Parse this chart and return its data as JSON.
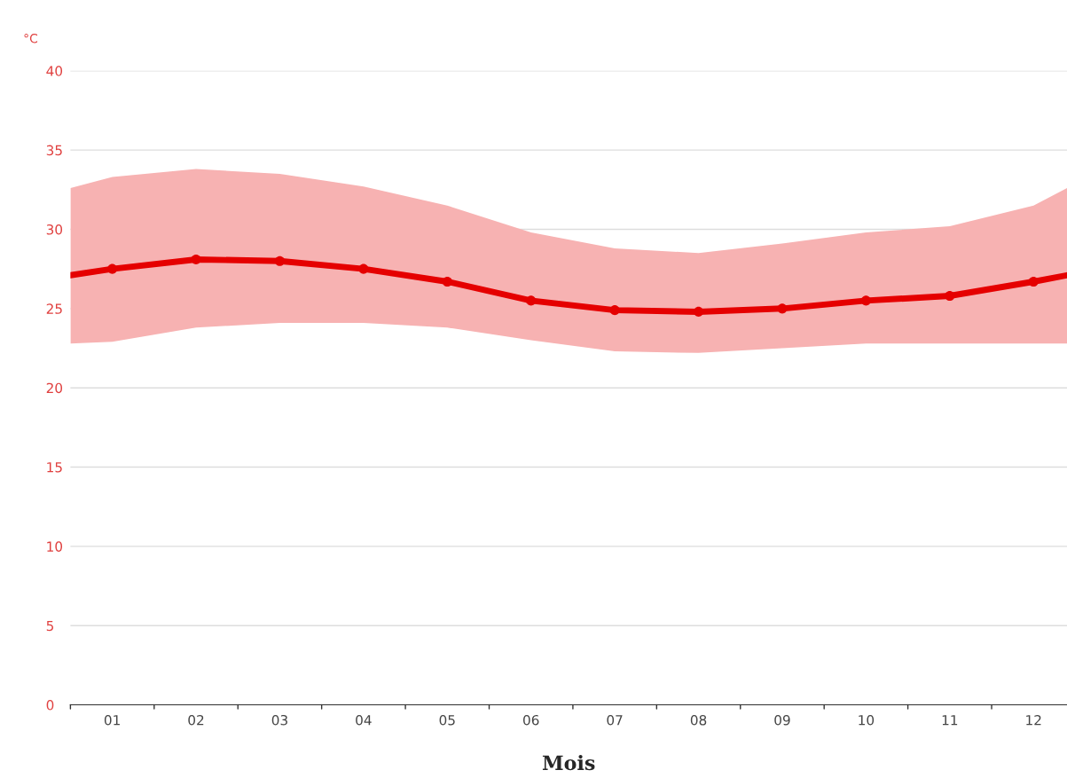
{
  "chart_data": {
    "type": "line",
    "xlabel": "Mois",
    "ylabel": "°C",
    "x": [
      0.5,
      1,
      2,
      3,
      4,
      5,
      6,
      7,
      8,
      9,
      10,
      11,
      12,
      12.4
    ],
    "series": [
      {
        "color": "#e50000",
        "values": [
          27.1,
          27.5,
          28.1,
          28.0,
          27.5,
          26.7,
          25.5,
          24.9,
          24.8,
          25.0,
          25.5,
          25.8,
          26.7,
          27.1
        ],
        "lower": [
          22.8,
          22.9,
          23.8,
          24.1,
          24.1,
          23.8,
          23.0,
          22.3,
          22.2,
          22.5,
          22.8,
          22.8,
          22.8,
          22.8
        ],
        "upper": [
          32.6,
          33.3,
          33.8,
          33.5,
          32.7,
          31.5,
          29.8,
          28.8,
          28.5,
          29.1,
          29.8,
          30.2,
          31.5,
          32.6
        ]
      }
    ],
    "xlim": [
      0.5,
      12.4
    ],
    "xticks": [
      {
        "value": 1,
        "label": "01"
      },
      {
        "value": 2,
        "label": "02"
      },
      {
        "value": 3,
        "label": "03"
      },
      {
        "value": 4,
        "label": "04"
      },
      {
        "value": 5,
        "label": "05"
      },
      {
        "value": 6,
        "label": "06"
      },
      {
        "value": 7,
        "label": "07"
      },
      {
        "value": 8,
        "label": "08"
      },
      {
        "value": 9,
        "label": "09"
      },
      {
        "value": 10,
        "label": "10"
      },
      {
        "value": 11,
        "label": "11"
      },
      {
        "value": 12,
        "label": "12"
      }
    ],
    "ylim": [
      0,
      40
    ],
    "yticks": [
      0,
      5,
      10,
      15,
      20,
      25,
      30,
      35,
      40
    ],
    "grid": "y",
    "marker": "circle",
    "line_style": "solid",
    "legend": false
  }
}
